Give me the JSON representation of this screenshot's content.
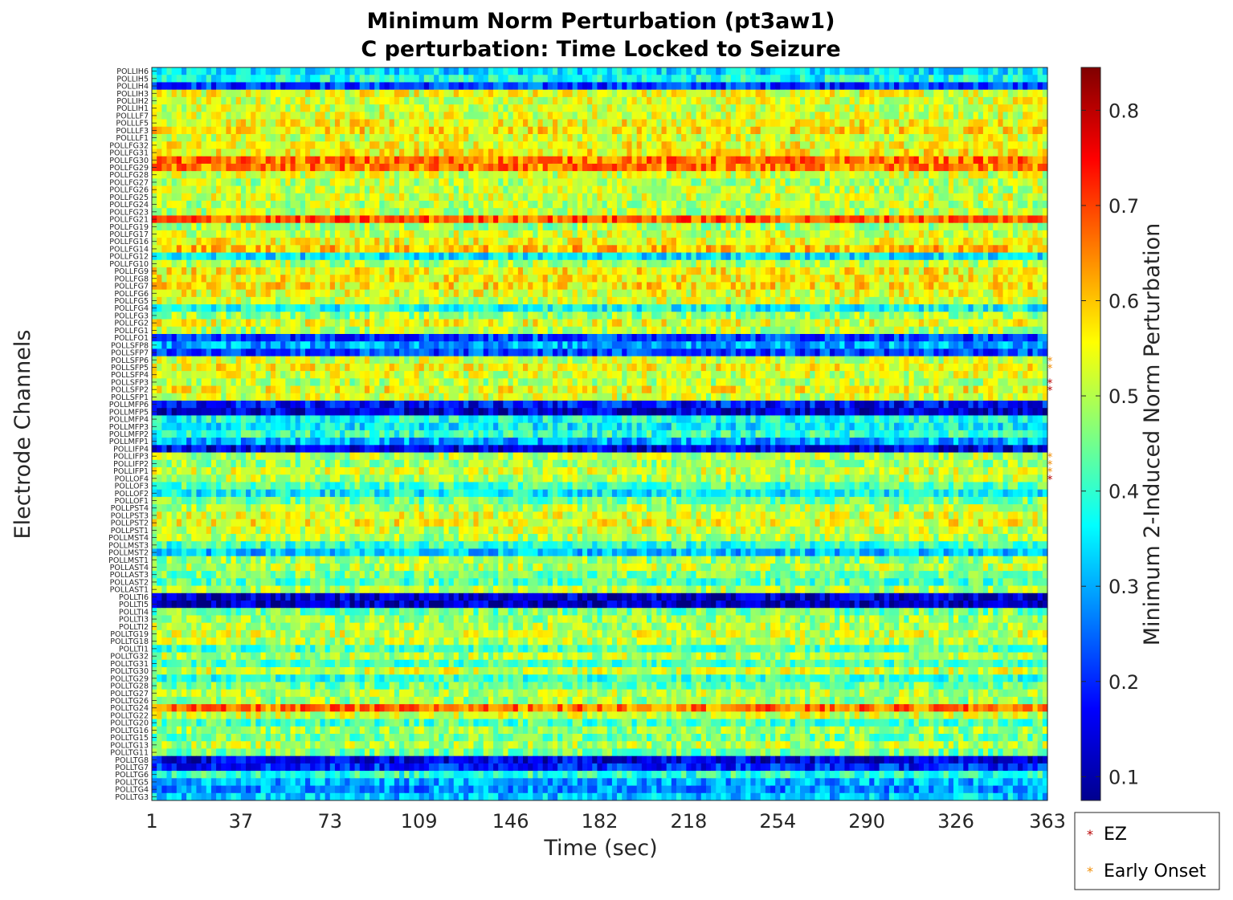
{
  "chart_data": {
    "type": "heatmap",
    "title": "Minimum Norm Perturbation (pt3aw1)",
    "subtitle": "C perturbation:  Time Locked to Seizure",
    "xlabel": "Time (sec)",
    "ylabel": "Electrode Channels",
    "x_ticks": [
      "1",
      "37",
      "73",
      "109",
      "146",
      "182",
      "218",
      "254",
      "290",
      "326",
      "363"
    ],
    "x_range": [
      1,
      363
    ],
    "channels": [
      "POLLIH6",
      "POLLIH5",
      "POLLIH4",
      "POLLIH3",
      "POLLIH2",
      "POLLIH1",
      "POLLLF7",
      "POLLLF5",
      "POLLLF3",
      "POLLLF1",
      "POLLFG32",
      "POLLFG31",
      "POLLFG30",
      "POLLFG29",
      "POLLFG28",
      "POLLFG27",
      "POLLFG26",
      "POLLFG25",
      "POLLFG24",
      "POLLFG23",
      "POLLFG21",
      "POLLFG19",
      "POLLFG17",
      "POLLFG16",
      "POLLFG14",
      "POLLFG12",
      "POLLFG10",
      "POLLFG9",
      "POLLFG8",
      "POLLFG7",
      "POLLFG6",
      "POLLFG5",
      "POLLFG4",
      "POLLFG3",
      "POLLFG2",
      "POLLFG1",
      "POLLFO1",
      "POLLSFP8",
      "POLLSFP7",
      "POLLSFP6",
      "POLLSFP5",
      "POLLSFP4",
      "POLLSFP3",
      "POLLSFP2",
      "POLLSFP1",
      "POLLMFP6",
      "POLLMFP5",
      "POLLMFP4",
      "POLLMFP3",
      "POLLMFP2",
      "POLLMFP1",
      "POLLIFP4",
      "POLLIFP3",
      "POLLIFP2",
      "POLLIFP1",
      "POLLOF4",
      "POLLOF3",
      "POLLOF2",
      "POLLOF1",
      "POLLPST4",
      "POLLPST3",
      "POLLPST2",
      "POLLPST1",
      "POLLMST4",
      "POLLMST3",
      "POLLMST2",
      "POLLMST1",
      "POLLAST4",
      "POLLAST3",
      "POLLAST2",
      "POLLAST1",
      "POLLTI6",
      "POLLTI5",
      "POLLTI4",
      "POLLTI3",
      "POLLTI2",
      "POLLTG19",
      "POLLTG18",
      "POLLTI1",
      "POLLTG32",
      "POLLTG31",
      "POLLTG30",
      "POLLTG29",
      "POLLTG28",
      "POLLTG27",
      "POLLTG26",
      "POLLTG24",
      "POLLTG22",
      "POLLTG20",
      "POLLTG16",
      "POLLTG15",
      "POLLTG13",
      "POLLTG11",
      "POLLTG8",
      "POLLTG7",
      "POLLTG6",
      "POLLTG5",
      "POLLTG4",
      "POLLTG3"
    ],
    "channel_means": [
      0.34,
      0.38,
      0.22,
      0.54,
      0.53,
      0.52,
      0.53,
      0.55,
      0.57,
      0.53,
      0.55,
      0.56,
      0.66,
      0.65,
      0.52,
      0.5,
      0.51,
      0.52,
      0.5,
      0.5,
      0.68,
      0.49,
      0.52,
      0.55,
      0.6,
      0.35,
      0.5,
      0.56,
      0.56,
      0.57,
      0.54,
      0.52,
      0.37,
      0.48,
      0.54,
      0.5,
      0.22,
      0.3,
      0.22,
      0.52,
      0.55,
      0.52,
      0.5,
      0.55,
      0.52,
      0.18,
      0.14,
      0.38,
      0.36,
      0.4,
      0.3,
      0.15,
      0.5,
      0.48,
      0.52,
      0.5,
      0.42,
      0.36,
      0.45,
      0.5,
      0.53,
      0.55,
      0.52,
      0.5,
      0.4,
      0.32,
      0.48,
      0.5,
      0.45,
      0.42,
      0.5,
      0.13,
      0.12,
      0.45,
      0.48,
      0.5,
      0.52,
      0.5,
      0.42,
      0.5,
      0.42,
      0.52,
      0.4,
      0.45,
      0.5,
      0.48,
      0.66,
      0.52,
      0.42,
      0.48,
      0.45,
      0.5,
      0.45,
      0.15,
      0.2,
      0.4,
      0.3,
      0.28,
      0.32
    ],
    "ez_channels": [
      "POLLSFP3",
      "POLLSFP2",
      "POLLOF4"
    ],
    "early_onset_channels": [
      "POLLSFP6",
      "POLLSFP5",
      "POLLIFP3",
      "POLLIFP2",
      "POLLIFP1"
    ],
    "colorbar": {
      "label": "Minimum 2-Induced Norm Perturbation",
      "range": [
        0.075,
        0.845
      ],
      "ticks": [
        "0.1",
        "0.2",
        "0.3",
        "0.4",
        "0.5",
        "0.6",
        "0.7",
        "0.8"
      ],
      "colormap": "jet"
    },
    "legend": {
      "position": "bottom-right",
      "items": [
        {
          "label": "EZ",
          "marker": "*",
          "color": "#b80000"
        },
        {
          "label": "Early Onset",
          "marker": "*",
          "color": "#f28c00"
        }
      ]
    },
    "grid": false
  },
  "colors": {
    "ez": "#ff0000",
    "early_onset": "#ff8c00"
  }
}
